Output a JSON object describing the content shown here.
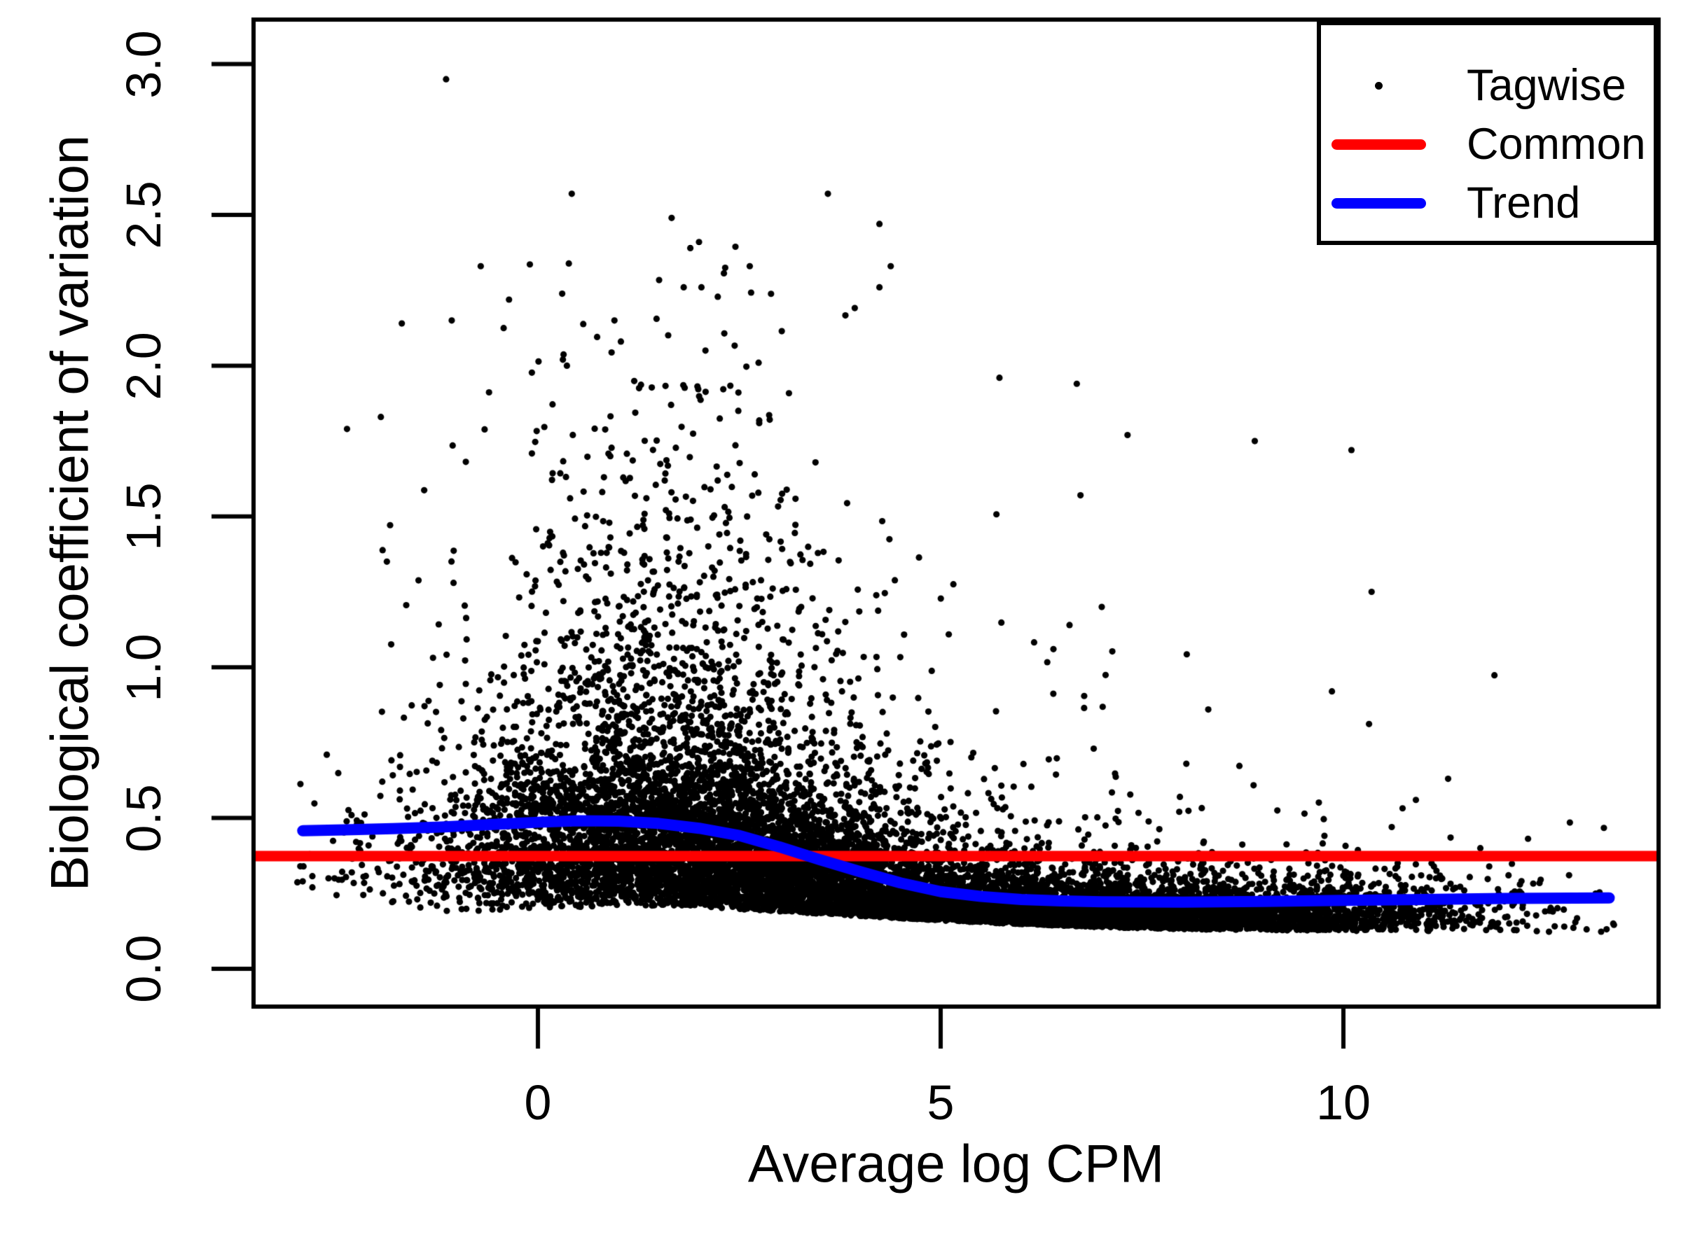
{
  "chart_data": {
    "type": "scatter",
    "title": "",
    "xlabel": "Average log CPM",
    "ylabel": "Biological coefficient of variation",
    "x_axis": {
      "ticks": [
        0,
        5,
        10
      ],
      "tick_labels": [
        "0",
        "5",
        "10"
      ],
      "range": [
        -3.53,
        13.91
      ],
      "grid": false
    },
    "y_axis": {
      "ticks": [
        0.0,
        0.5,
        1.0,
        1.5,
        2.0,
        2.5,
        3.0
      ],
      "tick_labels": [
        "0.0",
        "0.5",
        "1.0",
        "1.5",
        "2.0",
        "2.5",
        "3.0"
      ],
      "range": [
        -0.125,
        3.148
      ],
      "grid": false
    },
    "legend": {
      "position": "top-right",
      "entries": [
        {
          "label": "Tagwise",
          "type": "point",
          "color": "#000000"
        },
        {
          "label": "Common",
          "type": "line",
          "color": "#FF0000"
        },
        {
          "label": "Trend",
          "type": "line",
          "color": "#0000FF"
        }
      ]
    },
    "colors": {
      "points": "#000000",
      "common": "#FF0000",
      "trend": "#0000FF",
      "frame": "#000000",
      "background": "#FFFFFF"
    },
    "marker_radius_px": 4.6,
    "common_bcv": 0.374,
    "trend_line": [
      [
        -2.92,
        0.458
      ],
      [
        -2.4,
        0.461
      ],
      [
        -1.8,
        0.465
      ],
      [
        -1.2,
        0.47
      ],
      [
        -0.6,
        0.478
      ],
      [
        0.0,
        0.486
      ],
      [
        0.5,
        0.491
      ],
      [
        1.0,
        0.49
      ],
      [
        1.5,
        0.482
      ],
      [
        2.0,
        0.466
      ],
      [
        2.5,
        0.442
      ],
      [
        3.0,
        0.404
      ],
      [
        3.5,
        0.362
      ],
      [
        4.0,
        0.322
      ],
      [
        4.5,
        0.285
      ],
      [
        5.0,
        0.256
      ],
      [
        5.5,
        0.24
      ],
      [
        6.0,
        0.23
      ],
      [
        6.5,
        0.225
      ],
      [
        7.0,
        0.222
      ],
      [
        8.0,
        0.221
      ],
      [
        9.0,
        0.2235
      ],
      [
        10.0,
        0.227
      ],
      [
        11.0,
        0.23
      ],
      [
        12.0,
        0.233
      ],
      [
        13.3,
        0.235
      ]
    ],
    "outlier_points": [
      [
        -1.14,
        2.95
      ],
      [
        0.42,
        2.57
      ],
      [
        3.6,
        2.57
      ],
      [
        1.66,
        2.49
      ],
      [
        4.24,
        2.47
      ],
      [
        2.0,
        2.41
      ],
      [
        2.63,
        2.33
      ],
      [
        4.38,
        2.33
      ],
      [
        -0.71,
        2.33
      ],
      [
        1.81,
        2.26
      ],
      [
        2.03,
        2.26
      ],
      [
        4.24,
        2.26
      ],
      [
        -1.69,
        2.14
      ],
      [
        -1.07,
        2.15
      ],
      [
        0.95,
        2.15
      ],
      [
        1.03,
        2.08
      ],
      [
        2.08,
        2.05
      ],
      [
        0.31,
        2.02
      ],
      [
        0.36,
        2.0
      ],
      [
        5.73,
        1.96
      ],
      [
        6.69,
        1.94
      ],
      [
        7.32,
        1.77
      ],
      [
        8.9,
        1.75
      ],
      [
        10.1,
        1.72
      ],
      [
        -2.37,
        1.79
      ],
      [
        -1.95,
        1.83
      ],
      [
        7.0,
        1.2
      ],
      [
        6.6,
        1.14
      ],
      [
        6.4,
        1.06
      ],
      [
        10.35,
        1.25
      ],
      [
        6.9,
        0.73
      ],
      [
        8.05,
        0.68
      ],
      [
        7.97,
        0.57
      ],
      [
        11.3,
        0.63
      ],
      [
        11.7,
        0.4
      ],
      [
        12.05,
        0.31
      ],
      [
        12.1,
        0.21
      ],
      [
        12.15,
        0.128
      ],
      [
        13.2,
        0.123
      ],
      [
        12.6,
        0.19
      ],
      [
        12.9,
        0.23
      ],
      [
        11.5,
        0.26
      ],
      [
        13.35,
        0.15
      ],
      [
        11.9,
        0.24
      ],
      [
        11.15,
        0.3
      ],
      [
        10.6,
        0.47
      ],
      [
        10.9,
        0.56
      ],
      [
        -2.92,
        0.29
      ],
      [
        -2.8,
        0.27
      ],
      [
        -2.6,
        0.3
      ],
      [
        -2.95,
        0.34
      ]
    ],
    "scatter_model": {
      "n": 12500,
      "seed": 20240613,
      "x_range": [
        -3.02,
        13.45
      ],
      "x_mixture": [
        {
          "w": 0.39,
          "mu": 1.7,
          "sd": 1.5
        },
        {
          "w": 0.36,
          "mu": 4.3,
          "sd": 2.0
        },
        {
          "w": 0.2,
          "mu": 7.2,
          "sd": 1.7
        },
        {
          "w": 0.05,
          "mu": 9.8,
          "sd": 1.3
        }
      ],
      "core_ratio": 0.8,
      "core_log_sd": 0.33,
      "tail": {
        "base": 0.015,
        "amp": 0.3,
        "mu": 1.3,
        "sd": 3.4,
        "log_shift": 0.22,
        "log_sd": 0.72
      },
      "y_cap": 2.42,
      "bottom_env": [
        [
          -3.02,
          0.27
        ],
        [
          -2.5,
          0.225
        ],
        [
          -2.0,
          0.205
        ],
        [
          -1.0,
          0.19
        ],
        [
          0.0,
          0.2
        ],
        [
          1.0,
          0.21
        ],
        [
          2.0,
          0.205
        ],
        [
          3.0,
          0.19
        ],
        [
          4.0,
          0.175
        ],
        [
          5.0,
          0.16
        ],
        [
          6.0,
          0.148
        ],
        [
          7.0,
          0.138
        ],
        [
          8.0,
          0.131
        ],
        [
          9.0,
          0.128
        ],
        [
          10.0,
          0.126
        ],
        [
          11.0,
          0.124
        ],
        [
          12.0,
          0.121
        ],
        [
          13.45,
          0.117
        ]
      ],
      "bottom_jitter_sd": 0.035
    }
  }
}
